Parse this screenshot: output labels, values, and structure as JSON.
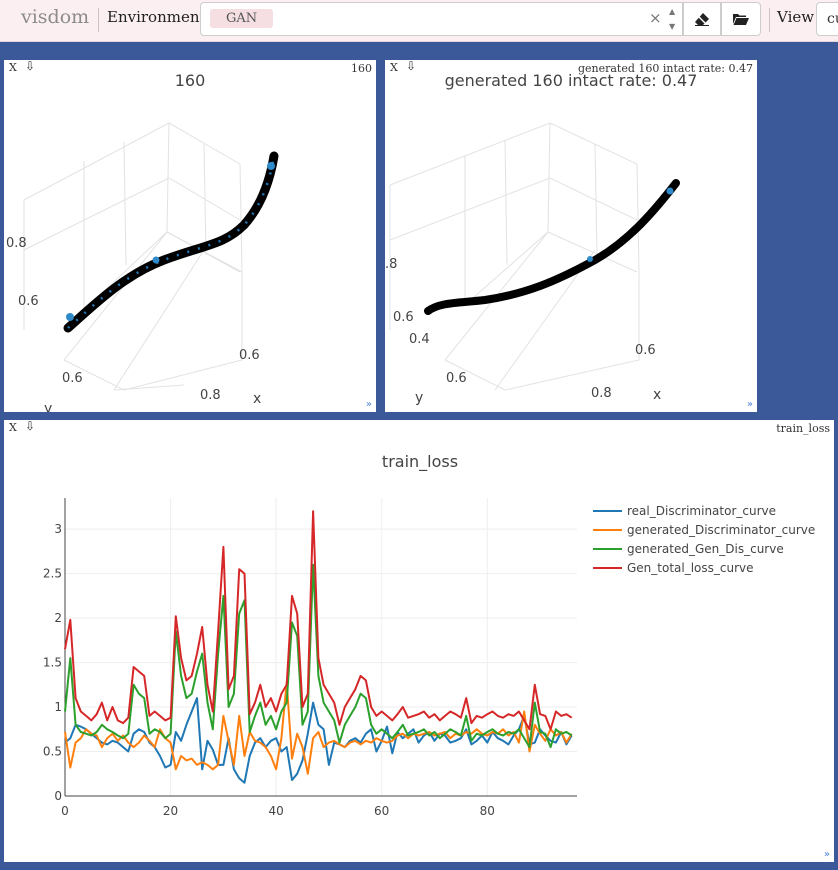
{
  "navbar": {
    "brand": "visdom",
    "environment_label": "Environment",
    "environment_tag": "GAN",
    "clear_symbol": "×",
    "view_label": "View",
    "view_value": "cu"
  },
  "panes": [
    {
      "close": "X",
      "title": "160",
      "plot_title": "160",
      "tick_labels": {
        "z_upper": "0.8",
        "z_lower": "0.6",
        "y_tick": "0.6",
        "x_tick_a": "0.6",
        "x_tick_b": "0.8",
        "x_axis": "x",
        "y_axis": "y"
      }
    },
    {
      "close": "X",
      "title": "generated 160 intact rate: 0.47",
      "plot_title": "generated 160  intact rate: 0.47",
      "tick_labels": {
        "z_upper": ".8",
        "z_lower": "0.6",
        "y_tick_a": "0.4",
        "y_tick_b": "0.6",
        "x_tick_a": "0.6",
        "x_tick_b": "0.8",
        "x_axis": "x",
        "y_axis": "y"
      }
    },
    {
      "close": "X",
      "title": "train_loss"
    }
  ],
  "chart_data": {
    "type": "line",
    "title": "train_loss",
    "xlabel": "",
    "ylabel": "",
    "xlim": [
      0,
      97
    ],
    "ylim": [
      0,
      3.35
    ],
    "x_ticks": [
      0,
      20,
      40,
      60,
      80
    ],
    "y_ticks": [
      0,
      0.5,
      1,
      1.5,
      2,
      2.5,
      3
    ],
    "grid": true,
    "legend": "top-right",
    "series": [
      {
        "name": "real_Discriminator_curve",
        "color": "#1f77b4",
        "values": [
          0.6,
          0.65,
          0.8,
          0.78,
          0.75,
          0.7,
          0.65,
          0.6,
          0.58,
          0.62,
          0.6,
          0.55,
          0.5,
          0.7,
          0.75,
          0.72,
          0.6,
          0.55,
          0.45,
          0.32,
          0.35,
          0.72,
          0.62,
          0.8,
          0.95,
          1.1,
          0.3,
          0.62,
          0.52,
          0.35,
          0.35,
          0.65,
          0.3,
          0.2,
          0.15,
          0.45,
          0.6,
          0.65,
          0.55,
          0.62,
          0.65,
          0.5,
          0.55,
          0.18,
          0.25,
          0.4,
          0.7,
          1.05,
          0.8,
          0.75,
          0.35,
          0.6,
          0.58,
          0.55,
          0.62,
          0.65,
          0.6,
          0.7,
          0.75,
          0.5,
          0.62,
          0.78,
          0.48,
          0.72,
          0.65,
          0.7,
          0.75,
          0.6,
          0.68,
          0.72,
          0.62,
          0.7,
          0.68,
          0.6,
          0.62,
          0.65,
          0.75,
          0.58,
          0.62,
          0.68,
          0.6,
          0.72,
          0.65,
          0.62,
          0.58,
          0.68,
          0.75,
          0.9,
          0.58,
          0.6,
          0.75,
          0.68,
          0.62,
          0.6,
          0.72,
          0.58,
          0.68
        ]
      },
      {
        "name": "generated_Discriminator_curve",
        "color": "#ff7f0e",
        "values": [
          0.72,
          0.32,
          0.6,
          0.65,
          0.75,
          0.7,
          0.68,
          0.55,
          0.65,
          0.7,
          0.62,
          0.68,
          0.6,
          0.55,
          0.6,
          0.68,
          0.62,
          0.55,
          0.75,
          0.65,
          0.6,
          0.3,
          0.45,
          0.4,
          0.42,
          0.35,
          0.38,
          0.35,
          0.3,
          0.35,
          0.9,
          0.62,
          0.35,
          0.9,
          0.45,
          0.72,
          0.62,
          0.6,
          0.55,
          0.45,
          0.3,
          0.65,
          1.28,
          0.42,
          0.7,
          0.55,
          0.25,
          0.65,
          0.72,
          0.55,
          0.6,
          0.62,
          0.58,
          0.55,
          0.6,
          0.62,
          0.58,
          0.62,
          0.6,
          0.65,
          0.62,
          0.6,
          0.62,
          0.68,
          0.7,
          0.65,
          0.7,
          0.68,
          0.7,
          0.72,
          0.68,
          0.7,
          0.72,
          0.65,
          0.7,
          0.68,
          0.72,
          0.7,
          0.75,
          0.7,
          0.68,
          0.72,
          0.7,
          0.75,
          0.68,
          0.72,
          0.6,
          0.95,
          0.5,
          0.8,
          0.7,
          0.62,
          0.75,
          0.68,
          0.72,
          0.6,
          0.7
        ]
      },
      {
        "name": "generated_Gen_Dis_curve",
        "color": "#2ca02c",
        "values": [
          0.95,
          1.55,
          0.8,
          0.72,
          0.7,
          0.68,
          0.72,
          0.8,
          0.75,
          0.72,
          0.68,
          0.65,
          0.7,
          1.25,
          1.15,
          1.1,
          0.7,
          0.75,
          0.72,
          0.65,
          0.7,
          1.85,
          1.35,
          1.1,
          1.15,
          1.4,
          1.6,
          1.05,
          0.75,
          1.6,
          2.25,
          1.0,
          1.15,
          2.05,
          2.2,
          0.72,
          0.9,
          1.05,
          0.8,
          0.9,
          0.75,
          0.95,
          1.05,
          1.95,
          1.8,
          0.8,
          0.95,
          2.6,
          1.35,
          1.05,
          0.95,
          0.85,
          0.6,
          0.8,
          0.9,
          1.0,
          1.15,
          1.1,
          0.8,
          0.7,
          0.75,
          0.7,
          0.65,
          0.72,
          0.8,
          0.68,
          0.7,
          0.72,
          0.75,
          0.68,
          0.72,
          0.65,
          0.7,
          0.75,
          0.72,
          0.68,
          0.9,
          0.62,
          0.7,
          0.68,
          0.72,
          0.75,
          0.7,
          0.68,
          0.72,
          0.7,
          0.75,
          0.65,
          0.55,
          1.05,
          0.72,
          0.7,
          0.55,
          0.75,
          0.7,
          0.72,
          0.68
        ]
      },
      {
        "name": "Gen_total_loss_curve",
        "color": "#d62728",
        "values": [
          1.65,
          1.98,
          1.1,
          0.95,
          0.9,
          0.85,
          0.92,
          1.05,
          0.85,
          1.0,
          0.85,
          0.82,
          0.88,
          1.45,
          1.4,
          1.35,
          0.9,
          0.95,
          0.9,
          0.85,
          0.88,
          2.02,
          1.55,
          1.3,
          1.35,
          1.6,
          1.9,
          1.25,
          0.95,
          1.85,
          2.8,
          1.2,
          1.35,
          2.55,
          2.5,
          0.92,
          1.05,
          1.25,
          1.0,
          1.1,
          0.95,
          1.15,
          1.25,
          2.25,
          2.05,
          1.0,
          1.15,
          3.2,
          1.55,
          1.25,
          1.15,
          1.05,
          0.8,
          1.0,
          1.1,
          1.2,
          1.35,
          1.3,
          1.0,
          0.9,
          0.95,
          0.9,
          0.85,
          0.92,
          1.0,
          0.88,
          0.9,
          0.92,
          0.95,
          0.88,
          0.92,
          0.85,
          0.9,
          0.95,
          0.92,
          0.88,
          1.1,
          0.82,
          0.9,
          0.88,
          0.92,
          0.95,
          0.9,
          0.88,
          0.92,
          0.9,
          0.95,
          0.85,
          0.75,
          1.25,
          0.92,
          0.9,
          0.75,
          0.95,
          0.9,
          0.92,
          0.88
        ]
      }
    ]
  }
}
